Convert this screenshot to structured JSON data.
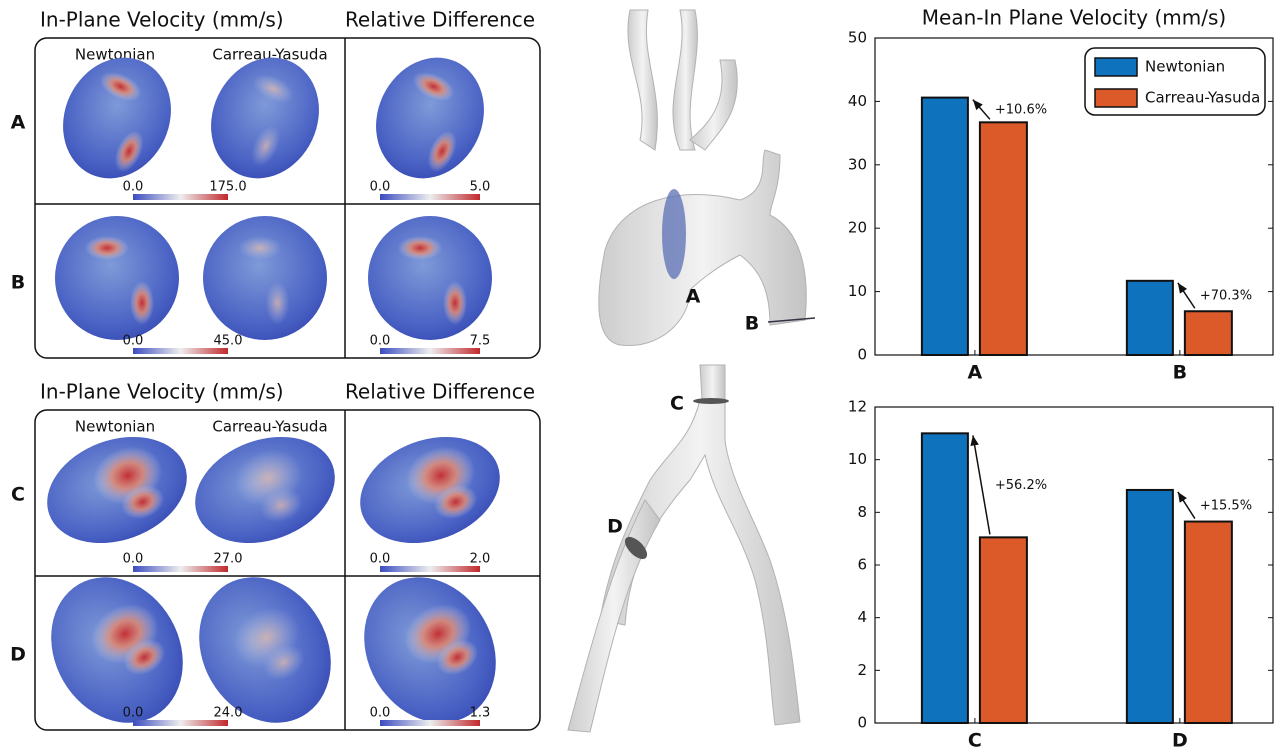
{
  "panels": [
    {
      "title": "In-Plane Velocity (mm/s)",
      "diff_title": "Relative Difference",
      "columns": [
        "Newtonian",
        "Carreau-Yasuda"
      ],
      "rows": [
        {
          "label": "A",
          "colorbar": [
            "0.0",
            "175.0"
          ],
          "diff_colorbar": [
            "0.0",
            "5.0"
          ]
        },
        {
          "label": "B",
          "colorbar": [
            "0.0",
            "45.0"
          ],
          "diff_colorbar": [
            "0.0",
            "7.5"
          ]
        }
      ]
    },
    {
      "title": "In-Plane Velocity (mm/s)",
      "diff_title": "Relative Difference",
      "columns": [
        "Newtonian",
        "Carreau-Yasuda"
      ],
      "rows": [
        {
          "label": "C",
          "colorbar": [
            "0.0",
            "27.0"
          ],
          "diff_colorbar": [
            "0.0",
            "2.0"
          ]
        },
        {
          "label": "D",
          "colorbar": [
            "0.0",
            "24.0"
          ],
          "diff_colorbar": [
            "0.0",
            "1.3"
          ]
        }
      ]
    }
  ],
  "geometry_labels": [
    "A",
    "B",
    "C",
    "D"
  ],
  "chart_data": [
    {
      "type": "bar",
      "title": "Mean-In Plane Velocity (mm/s)",
      "categories": [
        "A",
        "B"
      ],
      "series": [
        {
          "name": "Newtonian",
          "color": "#0f72bd",
          "values": [
            40.6,
            11.7
          ]
        },
        {
          "name": "Carreau-Yasuda",
          "color": "#dc5a2a",
          "values": [
            36.7,
            6.9
          ]
        }
      ],
      "annotations": [
        "+10.6%",
        "+70.3%"
      ],
      "ylim": [
        0,
        50
      ],
      "yticks": [
        0,
        10,
        20,
        30,
        40,
        50
      ],
      "legend": "top-right"
    },
    {
      "type": "bar",
      "categories": [
        "C",
        "D"
      ],
      "series": [
        {
          "name": "Newtonian",
          "color": "#0f72bd",
          "values": [
            11.0,
            8.85
          ]
        },
        {
          "name": "Carreau-Yasuda",
          "color": "#dc5a2a",
          "values": [
            7.05,
            7.65
          ]
        }
      ],
      "annotations": [
        "+56.2%",
        "+15.5%"
      ],
      "ylim": [
        0,
        12
      ],
      "yticks": [
        0,
        2,
        4,
        6,
        8,
        10,
        12
      ]
    }
  ]
}
